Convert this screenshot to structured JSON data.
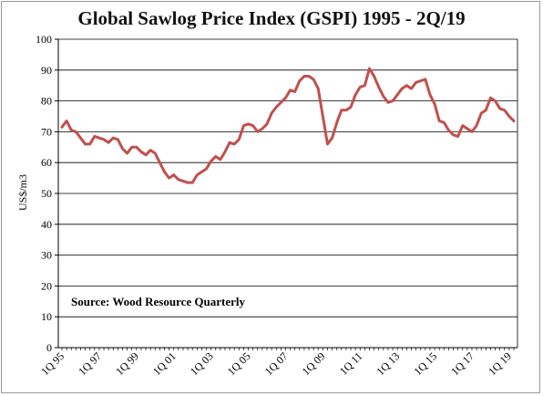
{
  "chart_data": {
    "type": "line",
    "title": "Global Sawlog Price Index (GSPI) 1995 - 2Q/19",
    "ylabel": "US$/m3",
    "xlabel": "",
    "ylim": [
      0,
      100
    ],
    "y_ticks": [
      0,
      10,
      20,
      30,
      40,
      50,
      60,
      70,
      80,
      90,
      100
    ],
    "grid": true,
    "x_tick_labels": [
      "1Q 95",
      "1Q 97",
      "1Q 99",
      "1Q 01",
      "1Q 03",
      "1Q 05",
      "1Q 07",
      "1Q 09",
      "1Q 11",
      "1Q 13",
      "1Q 15",
      "1Q 17",
      "1Q 19"
    ],
    "annotation": "Source: Wood Resource Quarterly",
    "series_color": "#c0504d",
    "series": [
      {
        "values": [
          71.5,
          73.5,
          70.5,
          70,
          68,
          66,
          66,
          68.5,
          68,
          67.5,
          66.5,
          68,
          67.5,
          64.5,
          63,
          65,
          65,
          63.5,
          62.5,
          64,
          63,
          60,
          57,
          55,
          56,
          54.5,
          54,
          53.5,
          53.5,
          56,
          57,
          58,
          60.5,
          62,
          61,
          63.5,
          66.5,
          66,
          67.5,
          72,
          72.5,
          72,
          70,
          71,
          72.5,
          76,
          78,
          79.5,
          81,
          83.5,
          83,
          86.5,
          88,
          88,
          87,
          84,
          75,
          66,
          68,
          73,
          77,
          77,
          78,
          82,
          84.5,
          85,
          90.5,
          88,
          84.5,
          81.5,
          79.5,
          80,
          82,
          84,
          85,
          84,
          86,
          86.5,
          87,
          82,
          79,
          73.5,
          73,
          70.5,
          69,
          68.5,
          72,
          71,
          70,
          72,
          76,
          77,
          81,
          80,
          77.5,
          77,
          75,
          73.5
        ]
      }
    ]
  }
}
